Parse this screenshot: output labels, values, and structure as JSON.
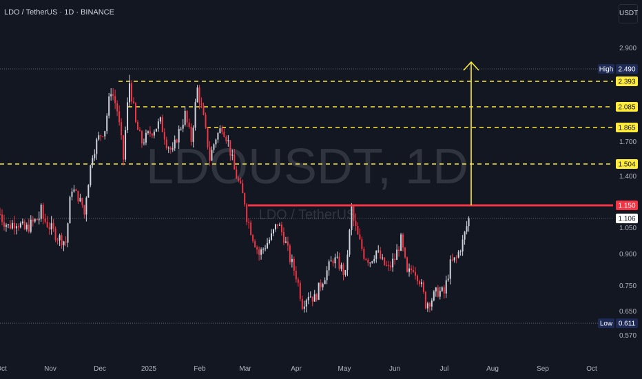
{
  "header": {
    "title": "LDO / TetherUS · 1D · BINANCE",
    "unit_button": "USDT"
  },
  "watermark": {
    "symbol": "LDOUSDT, 1D",
    "name": "LDO / TetherUS"
  },
  "colors": {
    "background": "#131722",
    "up": "#d1d4dc",
    "down": "#f23645",
    "level": "#ffeb3b",
    "resistance": "#f23645",
    "arrow": "#ffeb3b",
    "dotted": "#787b86"
  },
  "chart_data": {
    "type": "candlestick",
    "title": "LDO / TetherUS · 1D · BINANCE",
    "xlabel": "",
    "ylabel": "",
    "y_unit": "USDT",
    "ylim": [
      0.56,
      3.0
    ],
    "y_ticks": [
      "2.900",
      "1.700",
      "1.400",
      "1.050",
      "0.900",
      "0.750",
      "0.650",
      "0.570"
    ],
    "x_ticks": [
      "Oct",
      "Nov",
      "Dec",
      "2025",
      "Feb",
      "Mar",
      "Apr",
      "May",
      "Jun",
      "Jul",
      "Aug",
      "Sep",
      "Oct"
    ],
    "levels_dashed": [
      2.393,
      2.085,
      1.865,
      1.504
    ],
    "level_labels": [
      "2.393",
      "2.085",
      "1.865",
      "1.504"
    ],
    "resistance": {
      "value": 1.15,
      "label": "1.150"
    },
    "current_price": {
      "value": 1.106,
      "label": "1.106"
    },
    "high": {
      "label": "High",
      "value": 2.49,
      "value_label": "2.490"
    },
    "low": {
      "label": "Low",
      "value": 0.611,
      "value_label": "0.611"
    },
    "arrow": {
      "from": 1.15,
      "to": 2.9
    },
    "price_path": [
      [
        0,
        1.12
      ],
      [
        4,
        1.06
      ],
      [
        8,
        1.09
      ],
      [
        12,
        1.04
      ],
      [
        16,
        1.08
      ],
      [
        20,
        1.12
      ],
      [
        24,
        1.06
      ],
      [
        28,
        1.0
      ],
      [
        32,
        0.97
      ],
      [
        35,
        1.3
      ],
      [
        38,
        1.22
      ],
      [
        41,
        1.12
      ],
      [
        45,
        1.6
      ],
      [
        48,
        1.75
      ],
      [
        51,
        1.85
      ],
      [
        54,
        2.3
      ],
      [
        57,
        2.05
      ],
      [
        60,
        1.55
      ],
      [
        63,
        2.38
      ],
      [
        66,
        1.9
      ],
      [
        69,
        1.7
      ],
      [
        72,
        1.78
      ],
      [
        75,
        1.85
      ],
      [
        78,
        1.92
      ],
      [
        81,
        1.7
      ],
      [
        84,
        1.6
      ],
      [
        87,
        1.82
      ],
      [
        90,
        2.0
      ],
      [
        93,
        1.72
      ],
      [
        96,
        2.3
      ],
      [
        99,
        1.95
      ],
      [
        102,
        1.55
      ],
      [
        105,
        1.75
      ],
      [
        108,
        1.88
      ],
      [
        111,
        1.7
      ],
      [
        114,
        1.45
      ],
      [
        117,
        1.3
      ],
      [
        120,
        1.12
      ],
      [
        123,
        1.0
      ],
      [
        126,
        0.9
      ],
      [
        129,
        0.95
      ],
      [
        132,
        1.0
      ],
      [
        135,
        1.08
      ],
      [
        138,
        1.0
      ],
      [
        141,
        0.88
      ],
      [
        144,
        0.8
      ],
      [
        147,
        0.68
      ],
      [
        150,
        0.72
      ],
      [
        153,
        0.7
      ],
      [
        156,
        0.76
      ],
      [
        159,
        0.82
      ],
      [
        162,
        0.88
      ],
      [
        165,
        0.85
      ],
      [
        168,
        0.8
      ],
      [
        171,
        1.13
      ],
      [
        174,
        1.0
      ],
      [
        177,
        0.9
      ],
      [
        180,
        0.87
      ],
      [
        183,
        0.92
      ],
      [
        186,
        0.86
      ],
      [
        189,
        0.83
      ],
      [
        192,
        0.88
      ],
      [
        195,
        0.98
      ],
      [
        198,
        0.8
      ],
      [
        201,
        0.84
      ],
      [
        204,
        0.78
      ],
      [
        207,
        0.68
      ],
      [
        210,
        0.7
      ],
      [
        213,
        0.73
      ],
      [
        216,
        0.72
      ],
      [
        219,
        0.85
      ],
      [
        222,
        0.88
      ],
      [
        225,
        0.97
      ],
      [
        228,
        1.106
      ]
    ]
  }
}
